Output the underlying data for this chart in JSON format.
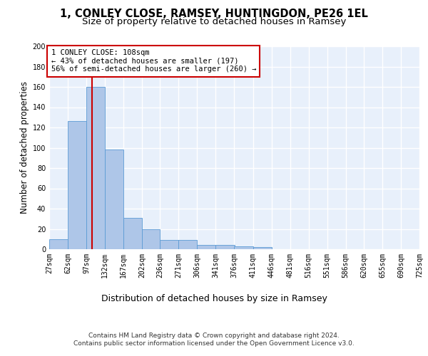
{
  "title1": "1, CONLEY CLOSE, RAMSEY, HUNTINGDON, PE26 1EL",
  "title2": "Size of property relative to detached houses in Ramsey",
  "xlabel": "Distribution of detached houses by size in Ramsey",
  "ylabel": "Number of detached properties",
  "bar_color": "#aec6e8",
  "bar_edge_color": "#5b9bd5",
  "bg_color": "#e8f0fb",
  "grid_color": "#ffffff",
  "bin_edges": [
    27,
    62,
    97,
    132,
    167,
    202,
    236,
    271,
    306,
    341,
    376,
    411,
    446,
    481,
    516,
    551,
    586,
    620,
    655,
    690,
    725
  ],
  "bar_heights": [
    10,
    126,
    160,
    98,
    31,
    20,
    9,
    9,
    4,
    4,
    3,
    2,
    0,
    0,
    0,
    0,
    0,
    0,
    0,
    0
  ],
  "property_size": 108,
  "red_line_color": "#cc0000",
  "annotation_text": "1 CONLEY CLOSE: 108sqm\n← 43% of detached houses are smaller (197)\n56% of semi-detached houses are larger (260) →",
  "annotation_box_color": "#ffffff",
  "annotation_border_color": "#cc0000",
  "ylim": [
    0,
    200
  ],
  "yticks": [
    0,
    20,
    40,
    60,
    80,
    100,
    120,
    140,
    160,
    180,
    200
  ],
  "footer_text": "Contains HM Land Registry data © Crown copyright and database right 2024.\nContains public sector information licensed under the Open Government Licence v3.0.",
  "title1_fontsize": 10.5,
  "title2_fontsize": 9.5,
  "xlabel_fontsize": 9,
  "ylabel_fontsize": 8.5,
  "tick_fontsize": 7,
  "annotation_fontsize": 7.5,
  "footer_fontsize": 6.5
}
